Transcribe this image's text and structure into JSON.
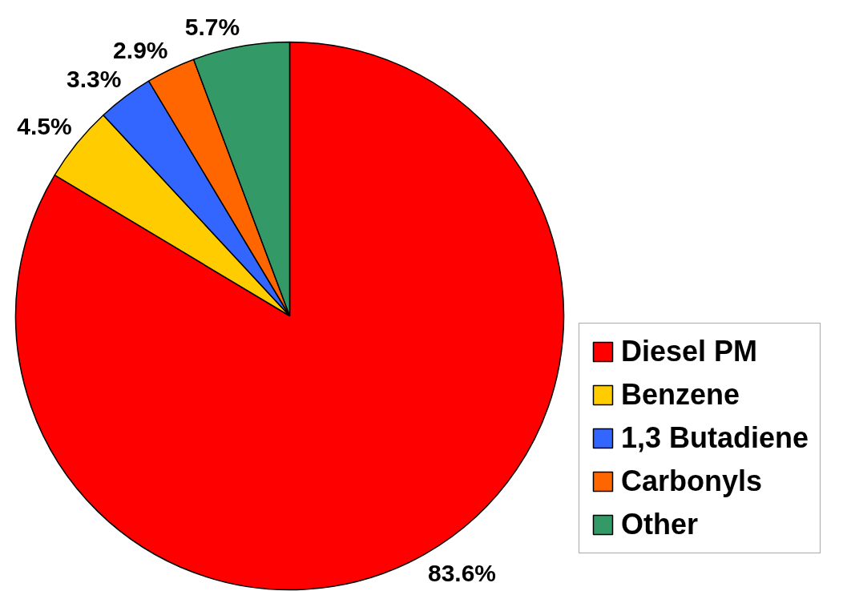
{
  "chart_data": {
    "type": "pie",
    "categories": [
      "Diesel PM",
      "Benzene",
      "1,3 Butadiene",
      "Carbonyls",
      "Other"
    ],
    "values": [
      83.6,
      4.5,
      3.3,
      2.9,
      5.7
    ],
    "colors": [
      "#ff0000",
      "#ffcc00",
      "#3366ff",
      "#ff6600",
      "#339966"
    ],
    "value_labels": [
      "83.6%",
      "4.5%",
      "3.3%",
      "2.9%",
      "5.7%"
    ],
    "legend": "bottom right"
  }
}
